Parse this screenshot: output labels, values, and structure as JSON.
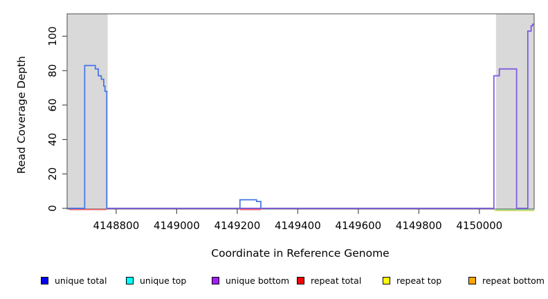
{
  "figure": {
    "xlabel": "Coordinate in Reference Genome",
    "ylabel": "Read Coverage Depth"
  },
  "chart_data": {
    "type": "line",
    "subtype": "step-coverage-depth",
    "title": "",
    "xlabel": "Coordinate in Reference Genome",
    "ylabel": "Read Coverage Depth",
    "xlim": [
      4148638,
      4150181
    ],
    "ylim": [
      0,
      113
    ],
    "grid": false,
    "xticks": {
      "values": [
        4148800,
        4149000,
        4149200,
        4149400,
        4149600,
        4149800,
        4150000
      ],
      "labels": [
        "4148800",
        "4149000",
        "4149200",
        "4149400",
        "4149600",
        "4149800",
        "4150000"
      ]
    },
    "yticks": {
      "values": [
        0,
        20,
        40,
        60,
        80,
        100
      ],
      "labels": [
        "0",
        "20",
        "40",
        "60",
        "80",
        "100"
      ]
    },
    "masked_regions": [
      {
        "x0": 4148638,
        "x1": 4148772
      },
      {
        "x0": 4150055,
        "x1": 4150181
      }
    ],
    "series": [
      {
        "id": "repeat-top",
        "name": "repeat top",
        "line_color": "#E6E377",
        "segments": [
          [
            [
              4150048,
              0
            ],
            [
              4150181,
              0
            ]
          ]
        ]
      },
      {
        "id": "unique-top-overlap",
        "name": "unique top (overlaps repeat top, renders green)",
        "line_color": "#8FCE8F",
        "segments": [
          [
            [
              4150055,
              0
            ],
            [
              4150181,
              0
            ]
          ]
        ]
      },
      {
        "id": "repeat-total",
        "name": "repeat total",
        "line_color": "#F2626E",
        "segments": [
          [
            [
              4148645,
              0
            ],
            [
              4148768,
              0
            ]
          ],
          [
            [
              4149209,
              0
            ],
            [
              4149278,
              0
            ]
          ]
        ]
      },
      {
        "id": "unique-bottom",
        "name": "unique bottom",
        "line_color": "#7B55E0",
        "segments": [
          [
            [
              4148772,
              0
            ],
            [
              4150048,
              0
            ],
            [
              4150048,
              77
            ],
            [
              4150066,
              77
            ],
            [
              4150066,
              81
            ],
            [
              4150123,
              81
            ],
            [
              4150123,
              0
            ],
            [
              4150160,
              0
            ],
            [
              4150160,
              103
            ],
            [
              4150171,
              103
            ],
            [
              4150171,
              106
            ],
            [
              4150176,
              106
            ],
            [
              4150176,
              107
            ],
            [
              4150181,
              107
            ]
          ]
        ]
      },
      {
        "id": "unique-total",
        "name": "unique total",
        "line_color": "#4273E8",
        "segments": [
          [
            [
              4148638,
              0
            ],
            [
              4148696,
              0
            ],
            [
              4148696,
              83
            ],
            [
              4148731,
              83
            ],
            [
              4148731,
              81
            ],
            [
              4148741,
              81
            ],
            [
              4148741,
              77
            ],
            [
              4148751,
              77
            ],
            [
              4148751,
              75
            ],
            [
              4148759,
              75
            ],
            [
              4148759,
              71
            ],
            [
              4148763,
              71
            ],
            [
              4148763,
              68
            ],
            [
              4148769,
              68
            ],
            [
              4148769,
              0
            ],
            [
              4148772,
              0
            ]
          ],
          [
            [
              4149209,
              0
            ],
            [
              4149209,
              5
            ],
            [
              4149264,
              5
            ],
            [
              4149264,
              4
            ],
            [
              4149278,
              4
            ],
            [
              4149278,
              0
            ]
          ]
        ]
      },
      {
        "id": "unique-top",
        "name": "unique top",
        "line_color": "#00FFFF",
        "segments": []
      },
      {
        "id": "repeat-bottom",
        "name": "repeat bottom",
        "line_color": "#FFA500",
        "segments": []
      }
    ]
  },
  "legend": {
    "items": [
      {
        "label": "unique total",
        "color": "#0000FF"
      },
      {
        "label": "unique top",
        "color": "#00FFFF"
      },
      {
        "label": "unique bottom",
        "color": "#A020F0"
      },
      {
        "label": "repeat total",
        "color": "#FF0000"
      },
      {
        "label": "repeat top",
        "color": "#FFFF00"
      },
      {
        "label": "repeat bottom",
        "color": "#FFA500"
      }
    ]
  },
  "colors": {
    "masked_region": "#D9D9D9",
    "axis": "#4D4D4D",
    "background": "#FFFFFF",
    "tick_text": "#000000"
  }
}
